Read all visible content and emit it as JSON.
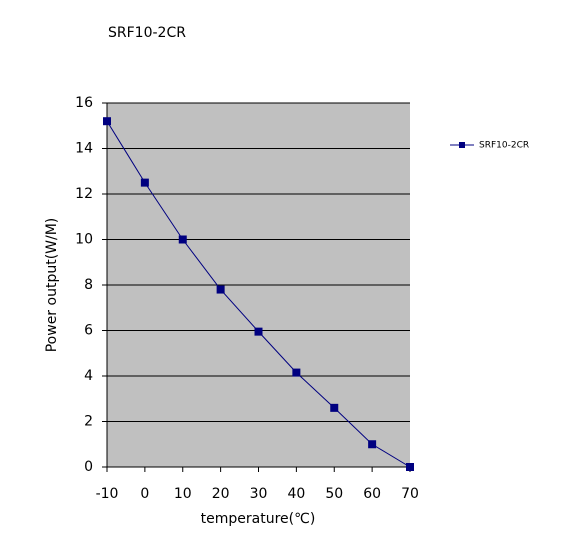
{
  "chart_data": {
    "type": "line",
    "title": "SRF10-2CR",
    "x_label": "temperature(℃)",
    "y_label": "Power output(W/M)",
    "x": [
      -10,
      0,
      10,
      20,
      30,
      40,
      50,
      60,
      70
    ],
    "series": [
      {
        "name": "SRF10-2CR",
        "color": "#000080",
        "values": [
          15.2,
          12.5,
          10.0,
          7.8,
          5.95,
          4.15,
          2.6,
          1.0,
          0.0
        ]
      }
    ],
    "xlim": [
      -10,
      70
    ],
    "xticks": [
      -10,
      0,
      10,
      20,
      30,
      40,
      50,
      60,
      70
    ],
    "ylim": [
      0,
      16
    ],
    "yticks": [
      0,
      2,
      4,
      6,
      8,
      10,
      12,
      14,
      16
    ],
    "grid": true,
    "legend": "right",
    "plot_background": "#c0c0c0"
  }
}
